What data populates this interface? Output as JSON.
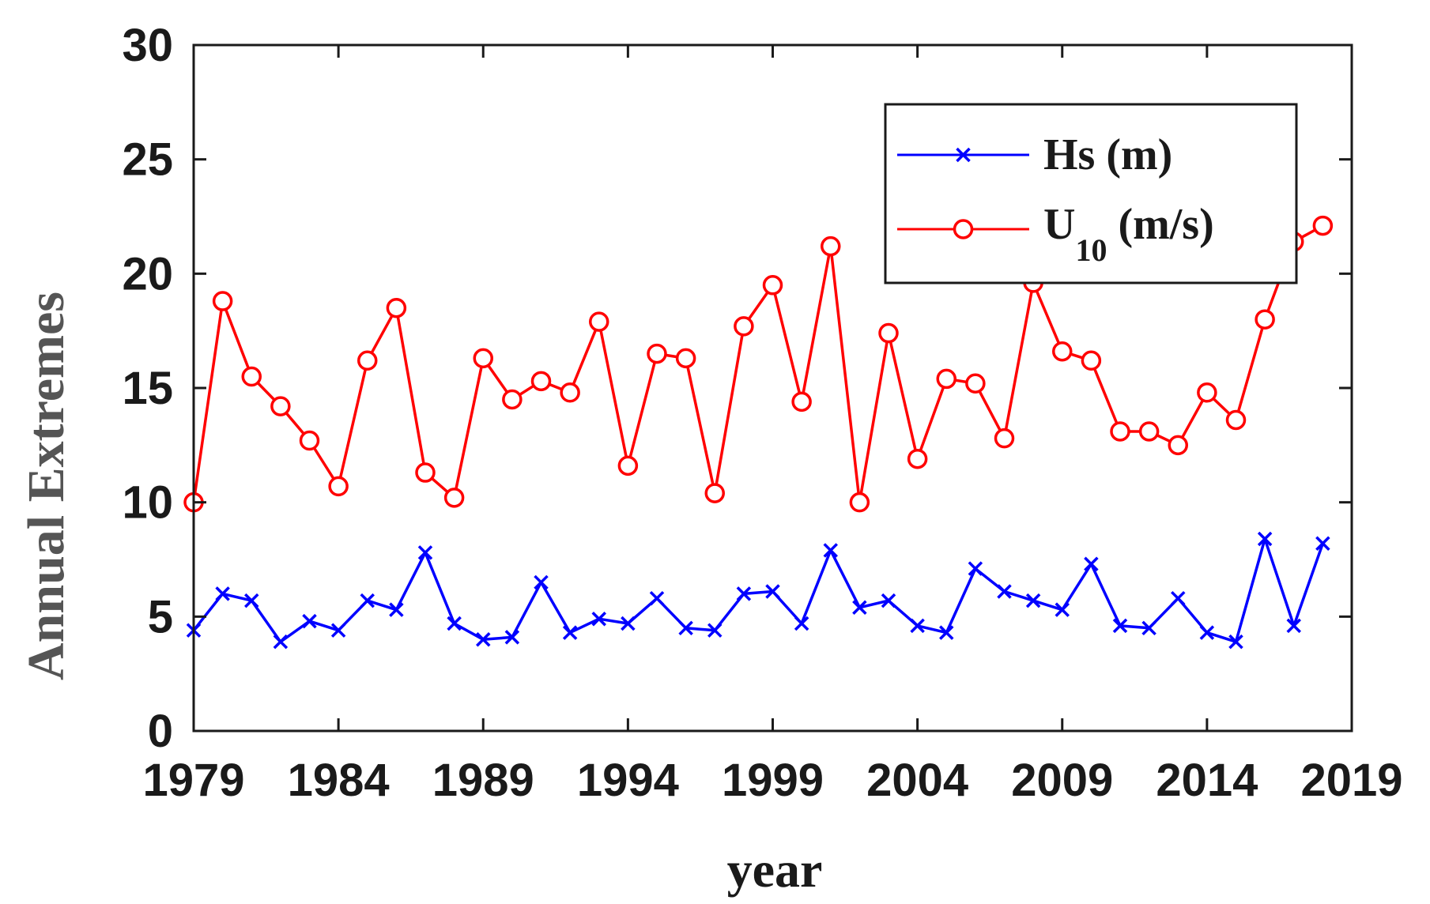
{
  "chart_data": {
    "type": "line",
    "title": "",
    "xlabel": "year",
    "ylabel": "Annual Extremes",
    "xlim": [
      1979,
      2019
    ],
    "ylim": [
      0,
      30
    ],
    "xticks": [
      "1979",
      "1984",
      "1989",
      "1994",
      "1999",
      "2004",
      "2009",
      "2014",
      "2019"
    ],
    "yticks": [
      "0",
      "5",
      "10",
      "15",
      "20",
      "25",
      "30"
    ],
    "grid": false,
    "legend_position": "top-right",
    "x": [
      1979,
      1980,
      1981,
      1982,
      1983,
      1984,
      1985,
      1986,
      1987,
      1988,
      1989,
      1990,
      1991,
      1992,
      1993,
      1994,
      1995,
      1996,
      1997,
      1998,
      1999,
      2000,
      2001,
      2002,
      2003,
      2004,
      2005,
      2006,
      2007,
      2008,
      2009,
      2010,
      2011,
      2012,
      2013,
      2014,
      2015,
      2016,
      2017,
      2018
    ],
    "series": [
      {
        "name": "Hs (m)",
        "label_main": "Hs (m)",
        "color": "#0000ff",
        "marker": "x",
        "values": [
          4.4,
          6.0,
          5.7,
          3.9,
          4.8,
          4.4,
          5.7,
          5.3,
          7.8,
          4.7,
          4.0,
          4.1,
          6.5,
          4.3,
          4.9,
          4.7,
          5.8,
          4.5,
          4.4,
          6.0,
          6.1,
          4.7,
          7.9,
          5.4,
          5.7,
          4.6,
          4.3,
          7.1,
          6.1,
          5.7,
          5.3,
          7.3,
          4.6,
          4.5,
          5.8,
          4.3,
          3.9,
          8.4,
          4.6,
          8.2
        ]
      },
      {
        "name": "U10 (m/s)",
        "label_main": "U",
        "label_sub": "10",
        "label_unit": "(m/s)",
        "color": "#ff0000",
        "marker": "o",
        "values": [
          10.0,
          18.8,
          15.5,
          14.2,
          12.7,
          10.7,
          16.2,
          18.5,
          11.3,
          10.2,
          16.3,
          14.5,
          15.3,
          14.8,
          17.9,
          11.6,
          16.5,
          16.3,
          10.4,
          17.7,
          19.5,
          14.4,
          21.2,
          10.0,
          17.4,
          11.9,
          15.4,
          15.2,
          12.8,
          19.6,
          16.6,
          16.2,
          13.1,
          13.1,
          12.5,
          14.8,
          13.6,
          18.0,
          21.4,
          22.1
        ]
      }
    ]
  }
}
